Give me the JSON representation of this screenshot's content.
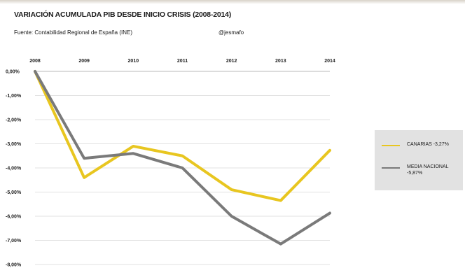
{
  "header": {
    "title": "VARIACIÓN ACUMULADA PIB DESDE INICIO CRISIS (2008-2014)",
    "source": "Fuente: Contabilidad Regional de España (INE)",
    "handle": "@jesmafo"
  },
  "chart_data": {
    "type": "line",
    "title": "VARIACIÓN ACUMULADA PIB DESDE INICIO CRISIS (2008-2014)",
    "x": [
      "2008",
      "2009",
      "2010",
      "2011",
      "2012",
      "2013",
      "2014"
    ],
    "ylim": [
      -8,
      0
    ],
    "yticks": [
      0,
      -1,
      -2,
      -3,
      -4,
      -5,
      -6,
      -7,
      -8
    ],
    "ytick_labels": [
      "0,00%",
      "-1,00%",
      "-2,00%",
      "-3,00%",
      "-4,00%",
      "-5,00%",
      "-6,00%",
      "-7,00%",
      "-8,00%"
    ],
    "x_axis_position": "top",
    "grid": true,
    "legend_position": "right",
    "series": [
      {
        "name": "CANARIAS -3,27%",
        "color": "#e8c620",
        "values": [
          0,
          -4.4,
          -3.1,
          -3.5,
          -4.9,
          -5.35,
          -3.27
        ]
      },
      {
        "name": "MEDIA NACIONAL -5,87%",
        "color": "#7a7a7a",
        "values": [
          0,
          -3.6,
          -3.4,
          -4.0,
          -6.0,
          -7.15,
          -5.87
        ]
      }
    ]
  }
}
